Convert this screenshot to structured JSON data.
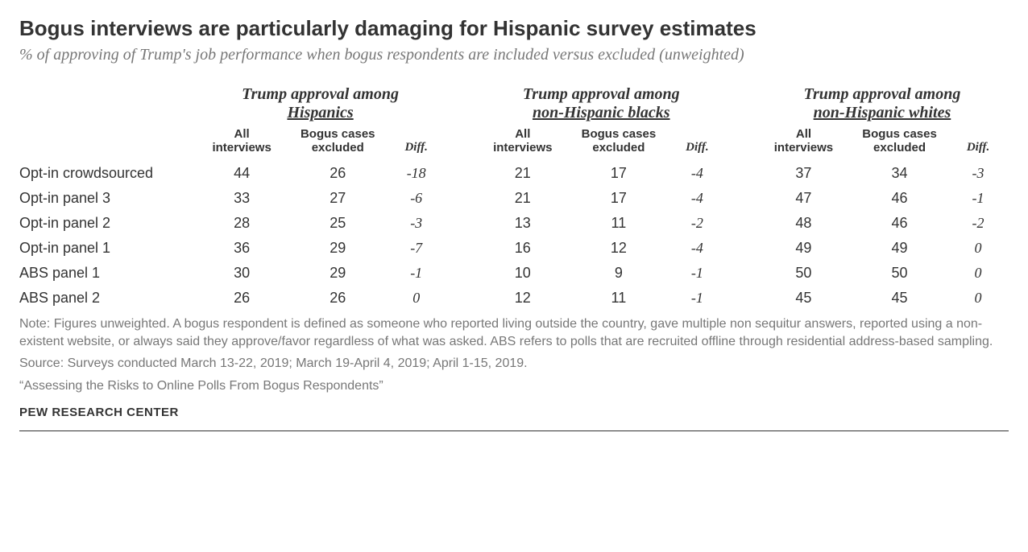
{
  "title": "Bogus interviews are particularly damaging for Hispanic survey estimates",
  "subtitle": "% of approving of Trump's job performance when bogus respondents are included versus excluded (unweighted)",
  "table": {
    "groups": [
      {
        "line1": "Trump approval among",
        "line2": "Hispanics"
      },
      {
        "line1": "Trump approval among",
        "line2": "non-Hispanic blacks"
      },
      {
        "line1": "Trump approval among",
        "line2": "non-Hispanic whites"
      }
    ],
    "col_labels": {
      "all": "All interviews",
      "excluded": "Bogus cases excluded",
      "diff": "Diff."
    },
    "rows": [
      {
        "label": "Opt-in crowdsourced",
        "g": [
          {
            "all": "44",
            "excluded": "26",
            "diff": "-18"
          },
          {
            "all": "21",
            "excluded": "17",
            "diff": "-4"
          },
          {
            "all": "37",
            "excluded": "34",
            "diff": "-3"
          }
        ]
      },
      {
        "label": "Opt-in panel 3",
        "g": [
          {
            "all": "33",
            "excluded": "27",
            "diff": "-6"
          },
          {
            "all": "21",
            "excluded": "17",
            "diff": "-4"
          },
          {
            "all": "47",
            "excluded": "46",
            "diff": "-1"
          }
        ]
      },
      {
        "label": "Opt-in panel 2",
        "g": [
          {
            "all": "28",
            "excluded": "25",
            "diff": "-3"
          },
          {
            "all": "13",
            "excluded": "11",
            "diff": "-2"
          },
          {
            "all": "48",
            "excluded": "46",
            "diff": "-2"
          }
        ]
      },
      {
        "label": "Opt-in panel 1",
        "g": [
          {
            "all": "36",
            "excluded": "29",
            "diff": "-7"
          },
          {
            "all": "16",
            "excluded": "12",
            "diff": "-4"
          },
          {
            "all": "49",
            "excluded": "49",
            "diff": "0"
          }
        ]
      },
      {
        "label": "ABS panel 1",
        "g": [
          {
            "all": "30",
            "excluded": "29",
            "diff": "-1"
          },
          {
            "all": "10",
            "excluded": "9",
            "diff": "-1"
          },
          {
            "all": "50",
            "excluded": "50",
            "diff": "0"
          }
        ]
      },
      {
        "label": "ABS panel 2",
        "g": [
          {
            "all": "26",
            "excluded": "26",
            "diff": "0"
          },
          {
            "all": "12",
            "excluded": "11",
            "diff": "-1"
          },
          {
            "all": "45",
            "excluded": "45",
            "diff": "0"
          }
        ]
      }
    ]
  },
  "note": "Note: Figures unweighted. A bogus respondent is defined as someone who reported living outside the country, gave multiple non sequitur answers, reported using a non-existent website, or always said they approve/favor regardless of what was asked. ABS refers to polls that are recruited offline through residential address-based sampling.",
  "source": "Source: Surveys conducted March 13-22, 2019; March 19-April 4, 2019; April 1-15, 2019.",
  "report": "“Assessing the Risks to Online Polls From Bogus Respondents”",
  "attribution": "PEW RESEARCH CENTER",
  "style": {
    "colors": {
      "title": "#333333",
      "subtitle": "#777777",
      "body_text": "#333333",
      "note_text": "#777777",
      "background": "#ffffff",
      "divider": "#333333"
    },
    "fontsize": {
      "title": 26,
      "subtitle": 20,
      "group_header": 20,
      "col_header": 15,
      "data": 18,
      "note": 16,
      "attribution": 15
    },
    "col_widths": {
      "label": 200,
      "data": 110,
      "diff": 70,
      "spacer": 32
    }
  }
}
